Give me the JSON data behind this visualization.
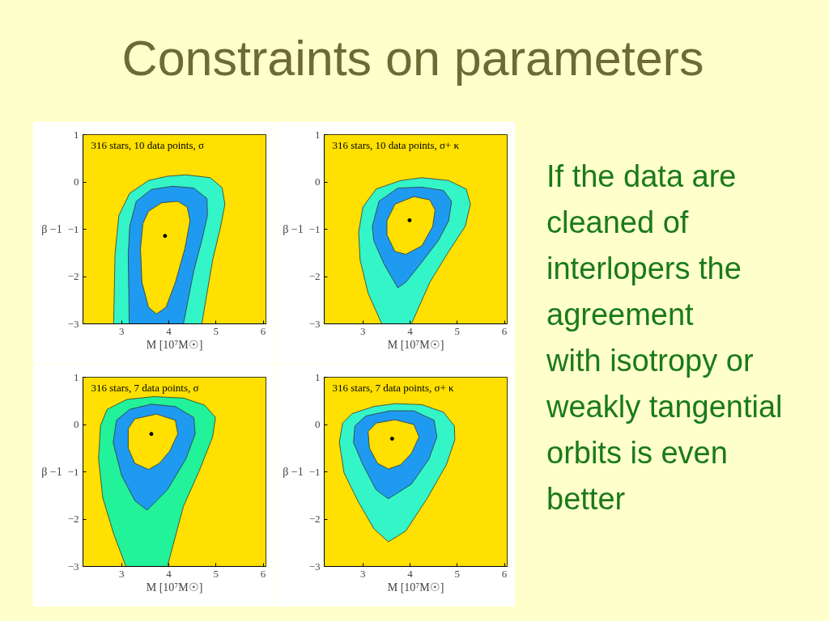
{
  "chart_data": [
    {
      "type": "other",
      "title": "Constraints on parameters"
    },
    {
      "type": "scatter",
      "title": "316 stars, 10 data points, σ",
      "xlabel": "M [10⁷M☉]",
      "ylabel": "β −1",
      "xlim": [
        2.18,
        6.06
      ],
      "ylim": [
        -3,
        1
      ],
      "xticks": [
        3,
        4,
        5,
        6
      ],
      "yticks": [
        1,
        0,
        {
          "value": -1,
          "label": "−1"
        },
        {
          "value": -2,
          "label": "−2"
        },
        {
          "value": -3,
          "label": "−3"
        }
      ],
      "grid": false,
      "bands": [
        {
          "axis": "y",
          "from": -3,
          "to": 1,
          "color": "#ffe000"
        }
      ],
      "series": [
        {
          "type": "area",
          "color": "#33f5c8",
          "x": [
            2.83,
            2.86,
            2.94,
            3.17,
            3.57,
            3.97,
            4.36,
            4.88,
            5.13,
            5.19,
            5.1,
            4.93,
            4.7
          ],
          "values": [
            -3,
            -1.53,
            -0.71,
            -0.24,
            0.03,
            0.12,
            0.15,
            0.09,
            -0.12,
            -0.47,
            -0.94,
            -1.65,
            -3
          ]
        },
        {
          "type": "area",
          "color": "#1e9bf0",
          "x": [
            3.16,
            3.14,
            3.17,
            3.31,
            3.63,
            4.08,
            4.53,
            4.81,
            4.82,
            4.7,
            4.53,
            4.31
          ],
          "values": [
            -3,
            -1.53,
            -0.94,
            -0.41,
            -0.16,
            -0.09,
            -0.13,
            -0.35,
            -0.71,
            -1.24,
            -1.88,
            -3
          ]
        },
        {
          "type": "area",
          "color": "#ffe000",
          "x": [
            3.74,
            3.57,
            3.43,
            3.4,
            3.45,
            3.57,
            3.85,
            4.19,
            4.39,
            4.45,
            4.34,
            4.14,
            3.94
          ],
          "values": [
            -2.79,
            -2.65,
            -2.12,
            -1.41,
            -0.88,
            -0.62,
            -0.44,
            -0.41,
            -0.53,
            -0.82,
            -1.41,
            -2.12,
            -2.65
          ]
        },
        {
          "type": "scatter",
          "marker": "circle",
          "color": "#000000",
          "x": [
            3.92
          ],
          "values": [
            -1.14
          ]
        }
      ]
    },
    {
      "type": "scatter",
      "title": "316 stars, 10 data points, σ+ κ",
      "xlabel": "M [10⁷M☉]",
      "ylabel": "β −1",
      "xlim": [
        2.18,
        6.06
      ],
      "ylim": [
        -3,
        1
      ],
      "xticks": [
        3,
        4,
        5,
        6
      ],
      "yticks": [
        1,
        0,
        {
          "value": -1,
          "label": "−1"
        },
        {
          "value": -2,
          "label": "−2"
        },
        {
          "value": -3,
          "label": "−3"
        }
      ],
      "grid": false,
      "bands": [
        {
          "axis": "y",
          "from": -3,
          "to": 1,
          "color": "#ffe000"
        }
      ],
      "series": [
        {
          "type": "area",
          "color": "#33f5c8",
          "x": [
            3.4,
            3.11,
            2.94,
            2.91,
            3.0,
            3.28,
            3.8,
            4.25,
            4.82,
            5.19,
            5.28,
            5.17,
            4.82,
            4.42,
            4.03
          ],
          "values": [
            -3,
            -2.35,
            -1.65,
            -1.06,
            -0.53,
            -0.15,
            0.03,
            0.09,
            0.03,
            -0.15,
            -0.47,
            -0.94,
            -1.47,
            -2.12,
            -3
          ]
        },
        {
          "type": "area",
          "color": "#1e9bf0",
          "x": [
            3.74,
            3.46,
            3.23,
            3.2,
            3.34,
            3.74,
            4.25,
            4.71,
            4.88,
            4.82,
            4.6,
            4.2,
            3.91
          ],
          "values": [
            -2.24,
            -1.76,
            -1.24,
            -0.94,
            -0.41,
            -0.13,
            -0.11,
            -0.18,
            -0.41,
            -0.82,
            -1.24,
            -1.76,
            -2.12
          ]
        },
        {
          "type": "area",
          "color": "#ffe000",
          "x": [
            3.91,
            3.68,
            3.51,
            3.51,
            3.68,
            4.08,
            4.42,
            4.53,
            4.48,
            4.25
          ],
          "values": [
            -1.53,
            -1.47,
            -1.12,
            -0.82,
            -0.47,
            -0.31,
            -0.38,
            -0.59,
            -0.94,
            -1.35
          ]
        },
        {
          "type": "scatter",
          "marker": "circle",
          "color": "#000000",
          "x": [
            3.99
          ],
          "values": [
            -0.81
          ]
        }
      ]
    },
    {
      "type": "scatter",
      "title": "316 stars, 7 data points, σ",
      "xlabel": "M [10⁷M☉]",
      "ylabel": "β −1",
      "xlim": [
        2.18,
        6.06
      ],
      "ylim": [
        -3,
        1
      ],
      "xticks": [
        3,
        4,
        5,
        6
      ],
      "yticks": [
        1,
        0,
        {
          "value": -1,
          "label": "−1"
        },
        {
          "value": -2,
          "label": "−2"
        },
        {
          "value": -3,
          "label": "−3"
        }
      ],
      "grid": false,
      "bands": [
        {
          "axis": "y",
          "from": -3,
          "to": 1,
          "color": "#ffe000"
        }
      ],
      "series": [
        {
          "type": "area",
          "color": "#22f29a",
          "x": [
            3.09,
            2.83,
            2.6,
            2.51,
            2.55,
            2.69,
            3.11,
            3.68,
            4.31,
            4.76,
            4.99,
            4.93,
            4.65,
            4.31,
            3.97
          ],
          "values": [
            -3,
            -2.31,
            -1.55,
            -0.73,
            -0.03,
            0.32,
            0.53,
            0.59,
            0.56,
            0.41,
            0.15,
            -0.26,
            -0.97,
            -1.73,
            -3
          ]
        },
        {
          "type": "area",
          "color": "#1e9bf0",
          "x": [
            3.54,
            3.28,
            3.0,
            2.82,
            2.89,
            3.17,
            3.63,
            4.14,
            4.53,
            4.56,
            4.36,
            3.97
          ],
          "values": [
            -1.81,
            -1.61,
            -1.08,
            -0.38,
            0.09,
            0.32,
            0.43,
            0.38,
            0.15,
            -0.2,
            -0.73,
            -1.38
          ]
        },
        {
          "type": "area",
          "color": "#ffe000",
          "x": [
            3.57,
            3.28,
            3.14,
            3.14,
            3.28,
            3.74,
            4.14,
            4.19,
            4.02,
            3.8
          ],
          "values": [
            -0.95,
            -0.82,
            -0.5,
            -0.09,
            0.12,
            0.22,
            0.09,
            -0.2,
            -0.56,
            -0.82
          ]
        },
        {
          "type": "scatter",
          "marker": "circle",
          "color": "#000000",
          "x": [
            3.63
          ],
          "values": [
            -0.2
          ]
        }
      ]
    },
    {
      "type": "scatter",
      "title": "316 stars, 7 data points, σ+ κ",
      "xlabel": "M [10⁷M☉]",
      "ylabel": "β −1",
      "xlim": [
        2.18,
        6.06
      ],
      "ylim": [
        -3,
        1
      ],
      "xticks": [
        3,
        4,
        5,
        6
      ],
      "yticks": [
        1,
        0,
        {
          "value": -1,
          "label": "−1"
        },
        {
          "value": -2,
          "label": "−2"
        },
        {
          "value": -3,
          "label": "−3"
        }
      ],
      "grid": false,
      "bands": [
        {
          "axis": "y",
          "from": -3,
          "to": 1,
          "color": "#ffe000"
        }
      ],
      "series": [
        {
          "type": "area",
          "color": "#33f5c8",
          "x": [
            3.54,
            3.23,
            2.89,
            2.6,
            2.5,
            2.57,
            2.77,
            3.23,
            3.68,
            4.25,
            4.71,
            4.94,
            4.95,
            4.77,
            4.37,
            3.91
          ],
          "values": [
            -2.48,
            -2.2,
            -1.61,
            -1.02,
            -0.38,
            0.03,
            0.23,
            0.38,
            0.44,
            0.42,
            0.26,
            -0.03,
            -0.32,
            -0.85,
            -1.55,
            -2.25
          ]
        },
        {
          "type": "area",
          "color": "#1e9bf0",
          "x": [
            3.54,
            3.28,
            3.0,
            2.8,
            2.83,
            3.06,
            3.57,
            4.08,
            4.51,
            4.57,
            4.4,
            4.03
          ],
          "values": [
            -1.57,
            -1.38,
            -0.85,
            -0.38,
            -0.03,
            0.18,
            0.29,
            0.29,
            0.09,
            -0.26,
            -0.73,
            -1.26
          ]
        },
        {
          "type": "area",
          "color": "#ffe000",
          "x": [
            3.54,
            3.31,
            3.14,
            3.11,
            3.28,
            3.68,
            4.08,
            4.19,
            4.03,
            3.8
          ],
          "values": [
            -0.94,
            -0.82,
            -0.5,
            -0.15,
            0.03,
            0.1,
            0.0,
            -0.26,
            -0.61,
            -0.85
          ]
        },
        {
          "type": "scatter",
          "marker": "circle",
          "color": "#000000",
          "x": [
            3.62
          ],
          "values": [
            -0.3
          ]
        }
      ]
    },
    {
      "type": "other",
      "annotations": [
        "If the data are cleaned of interlopers the agreement",
        "with isotropy or weakly tangential orbits is even better"
      ]
    }
  ]
}
